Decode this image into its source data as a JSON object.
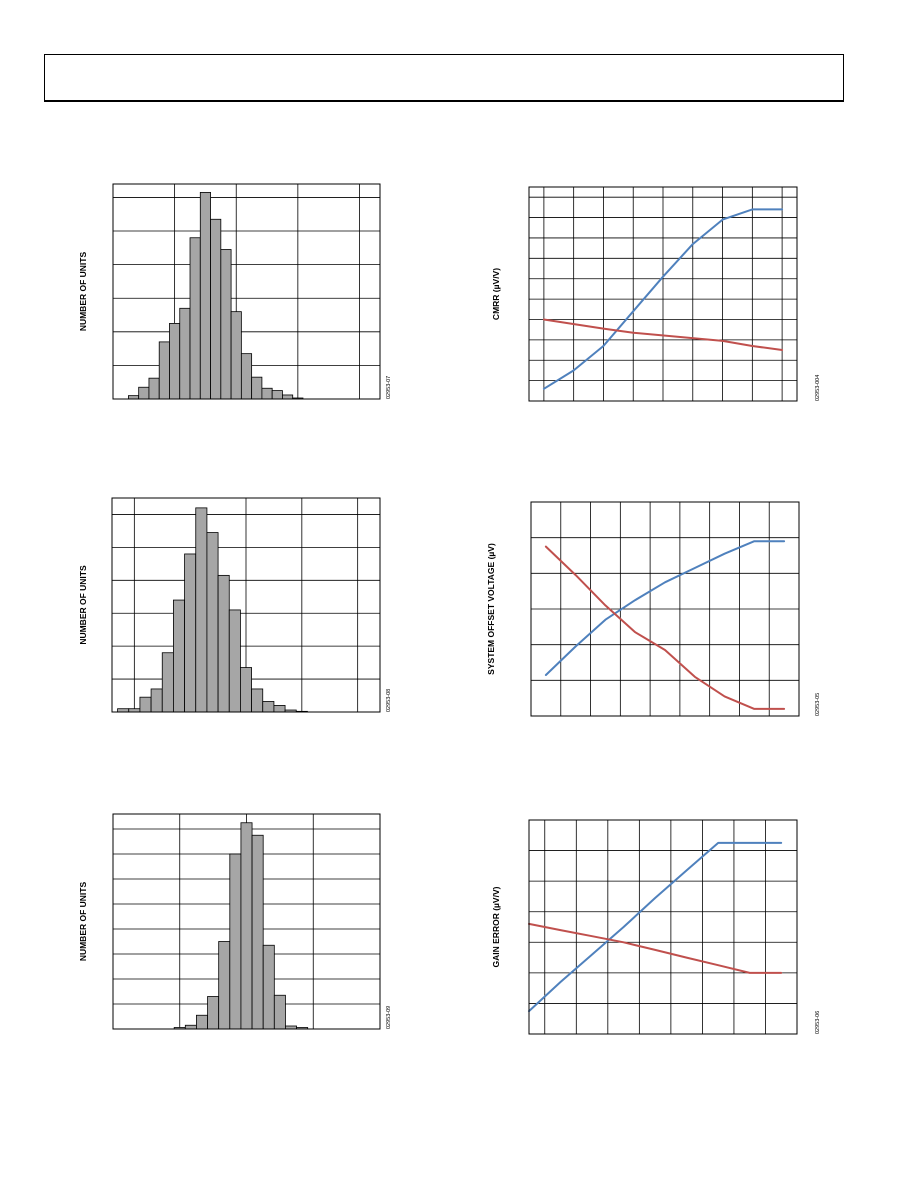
{
  "page": {
    "header_text": ""
  },
  "chart_data": [
    {
      "id": "hist1",
      "type": "bar",
      "ylabel": "NUMBER OF UNITS",
      "xlabel": "",
      "figure_id": "02953-07",
      "xlim": [
        0,
        26
      ],
      "ylim": [
        0,
        6.4
      ],
      "xgrid": [
        6,
        12,
        18,
        24
      ],
      "ygrid": [
        1,
        2,
        3,
        4,
        5,
        6
      ],
      "bars": [
        {
          "x": 2,
          "v": 0.1
        },
        {
          "x": 3,
          "v": 0.35
        },
        {
          "x": 4,
          "v": 0.62
        },
        {
          "x": 5,
          "v": 1.7
        },
        {
          "x": 6,
          "v": 2.25
        },
        {
          "x": 7,
          "v": 2.7
        },
        {
          "x": 8,
          "v": 4.8
        },
        {
          "x": 9,
          "v": 6.15
        },
        {
          "x": 10,
          "v": 5.35
        },
        {
          "x": 11,
          "v": 4.45
        },
        {
          "x": 12,
          "v": 2.6
        },
        {
          "x": 13,
          "v": 1.35
        },
        {
          "x": 14,
          "v": 0.65
        },
        {
          "x": 15,
          "v": 0.32
        },
        {
          "x": 16,
          "v": 0.25
        },
        {
          "x": 17,
          "v": 0.12
        },
        {
          "x": 18,
          "v": 0.03
        }
      ]
    },
    {
      "id": "hist2",
      "type": "bar",
      "ylabel": "NUMBER OF UNITS",
      "xlabel": "",
      "figure_id": "02953-08",
      "xlim": [
        0,
        24
      ],
      "ylim": [
        0,
        6.5
      ],
      "xgrid": [
        2,
        12,
        17,
        22
      ],
      "ygrid": [
        1,
        2,
        3,
        4,
        5,
        6
      ],
      "bars": [
        {
          "x": 1,
          "v": 0.1
        },
        {
          "x": 2,
          "v": 0.1
        },
        {
          "x": 3,
          "v": 0.45
        },
        {
          "x": 4,
          "v": 0.7
        },
        {
          "x": 5,
          "v": 1.8
        },
        {
          "x": 6,
          "v": 3.4
        },
        {
          "x": 7,
          "v": 4.8
        },
        {
          "x": 8,
          "v": 6.2
        },
        {
          "x": 9,
          "v": 5.45
        },
        {
          "x": 10,
          "v": 4.15
        },
        {
          "x": 11,
          "v": 3.1
        },
        {
          "x": 12,
          "v": 1.35
        },
        {
          "x": 13,
          "v": 0.7
        },
        {
          "x": 14,
          "v": 0.32
        },
        {
          "x": 15,
          "v": 0.2
        },
        {
          "x": 16,
          "v": 0.06
        },
        {
          "x": 17,
          "v": 0.02
        }
      ]
    },
    {
      "id": "hist3",
      "type": "bar",
      "ylabel": "NUMBER OF UNITS",
      "xlabel": "",
      "figure_id": "02953-09",
      "xlim": [
        0,
        24
      ],
      "ylim": [
        0,
        8.6
      ],
      "xgrid": [
        6,
        12,
        18
      ],
      "ygrid": [
        1,
        2,
        3,
        4,
        5,
        6,
        7,
        8
      ],
      "bars": [
        {
          "x": 6,
          "v": 0.06
        },
        {
          "x": 7,
          "v": 0.15
        },
        {
          "x": 8,
          "v": 0.55
        },
        {
          "x": 9,
          "v": 1.3
        },
        {
          "x": 10,
          "v": 3.5
        },
        {
          "x": 11,
          "v": 7.0
        },
        {
          "x": 12,
          "v": 8.25
        },
        {
          "x": 13,
          "v": 7.75
        },
        {
          "x": 14,
          "v": 3.35
        },
        {
          "x": 15,
          "v": 1.35
        },
        {
          "x": 16,
          "v": 0.12
        },
        {
          "x": 17,
          "v": 0.06
        }
      ]
    },
    {
      "id": "line1",
      "type": "line",
      "ylabel": "CMRR (µV/V)",
      "xlabel": "",
      "figure_id": "02953-004",
      "xlim": [
        0,
        9
      ],
      "ylim": [
        0,
        10.5
      ],
      "xgrid": [
        0.5,
        1.5,
        2.5,
        3.5,
        4.5,
        5.5,
        6.5,
        7.5,
        8.5
      ],
      "ygrid": [
        1,
        2,
        3,
        4,
        5,
        6,
        7,
        8,
        9,
        10
      ],
      "series": [
        {
          "color": "#4f81bd",
          "points": [
            [
              0.5,
              0.6
            ],
            [
              1.5,
              1.5
            ],
            [
              2.5,
              2.7
            ],
            [
              3.5,
              4.4
            ],
            [
              4.5,
              6.1
            ],
            [
              5.5,
              7.7
            ],
            [
              6.5,
              8.9
            ],
            [
              7.5,
              9.4
            ],
            [
              8.5,
              9.4
            ]
          ]
        },
        {
          "color": "#c0504d",
          "points": [
            [
              0.5,
              4.0
            ],
            [
              2.5,
              3.55
            ],
            [
              3.5,
              3.35
            ],
            [
              6.5,
              2.95
            ],
            [
              7.5,
              2.7
            ],
            [
              8.5,
              2.5
            ]
          ]
        }
      ]
    },
    {
      "id": "line2",
      "type": "line",
      "ylabel": "SYSTEM OFFSET VOLTAGE (µV)",
      "xlabel": "",
      "figure_id": "02953-05",
      "xlim": [
        0,
        9
      ],
      "ylim": [
        0,
        6
      ],
      "xgrid": [
        1,
        2,
        3,
        4,
        5,
        6,
        7,
        8
      ],
      "ygrid": [
        1,
        2,
        3,
        4,
        5
      ],
      "series": [
        {
          "color": "#4f81bd",
          "points": [
            [
              0.5,
              1.15
            ],
            [
              1.5,
              1.95
            ],
            [
              2.5,
              2.7
            ],
            [
              3.5,
              3.25
            ],
            [
              4.5,
              3.75
            ],
            [
              5.5,
              4.15
            ],
            [
              6.5,
              4.55
            ],
            [
              7.5,
              4.9
            ],
            [
              8.5,
              4.9
            ]
          ]
        },
        {
          "color": "#c0504d",
          "points": [
            [
              0.5,
              4.75
            ],
            [
              1.5,
              3.95
            ],
            [
              2.5,
              3.1
            ],
            [
              3.5,
              2.35
            ],
            [
              4.5,
              1.85
            ],
            [
              5.5,
              1.1
            ],
            [
              6.5,
              0.55
            ],
            [
              7.5,
              0.2
            ],
            [
              8.5,
              0.2
            ]
          ]
        }
      ]
    },
    {
      "id": "line3",
      "type": "line",
      "ylabel": "GAIN ERROR (µV/V)",
      "xlabel": "",
      "figure_id": "02953-06",
      "xlim": [
        0,
        8.5
      ],
      "ylim": [
        0,
        7
      ],
      "xgrid": [
        0.5,
        1.5,
        2.5,
        3.5,
        4.5,
        5.5,
        6.5,
        7.5
      ],
      "ygrid": [
        1,
        2,
        3,
        4,
        5,
        6
      ],
      "series": [
        {
          "color": "#4f81bd",
          "points": [
            [
              0,
              0.75
            ],
            [
              1,
              1.7
            ],
            [
              2,
              2.6
            ],
            [
              3,
              3.5
            ],
            [
              4,
              4.45
            ],
            [
              5,
              5.35
            ],
            [
              6,
              6.25
            ],
            [
              7,
              6.25
            ],
            [
              8,
              6.25
            ]
          ]
        },
        {
          "color": "#c0504d",
          "points": [
            [
              0,
              3.6
            ],
            [
              1,
              3.4
            ],
            [
              2,
              3.2
            ],
            [
              3,
              3.0
            ],
            [
              4,
              2.75
            ],
            [
              5,
              2.5
            ],
            [
              6,
              2.25
            ],
            [
              7,
              2.0
            ],
            [
              8,
              2.0
            ]
          ]
        }
      ]
    }
  ]
}
